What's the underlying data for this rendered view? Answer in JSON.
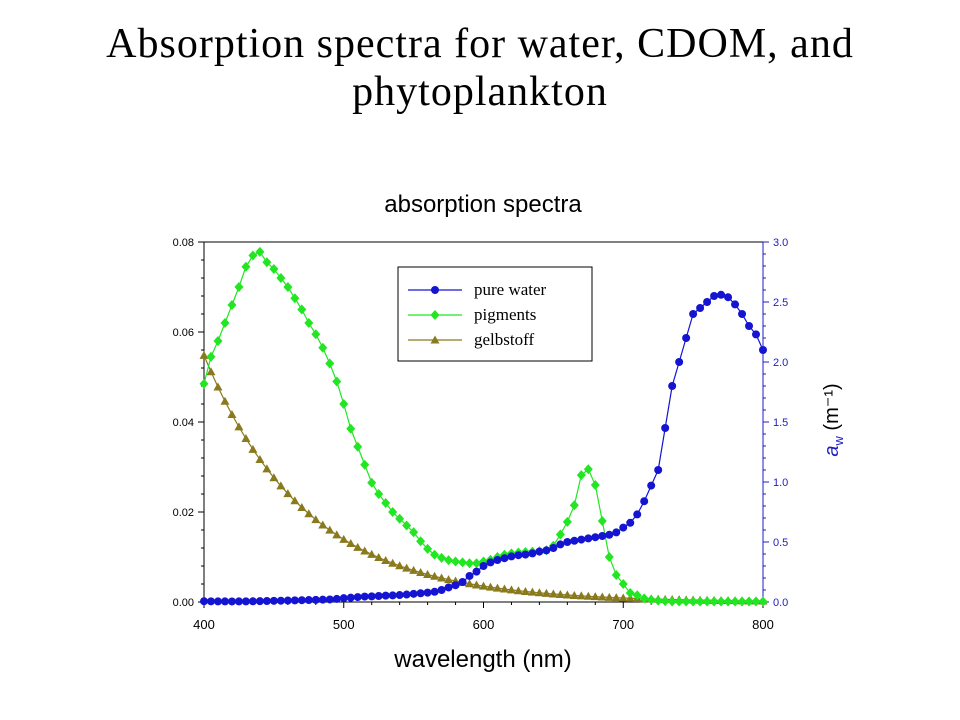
{
  "slide": {
    "title_line1": "Absorption spectra for water, CDOM, and",
    "title_line2": "phytoplankton"
  },
  "chart_data": {
    "type": "line",
    "title": "absorption spectra",
    "xlabel": "wavelength  (nm)",
    "y_label_right": "(m⁻¹)",
    "y_label_right_symbol": "a",
    "y_label_right_subscript": "w",
    "xlim": [
      400,
      800
    ],
    "x_ticks": [
      400,
      500,
      600,
      700,
      800
    ],
    "ylim_left": [
      0,
      0.08
    ],
    "y_ticks_left": [
      "0.00",
      "0.02",
      "0.04",
      "0.06",
      "0.08"
    ],
    "ylim_right": [
      0,
      3.0
    ],
    "y_ticks_right": [
      "0.0",
      "0.5",
      "1.0",
      "1.5",
      "2.0",
      "2.5",
      "3.0"
    ],
    "grid": false,
    "legend_position": "top-center",
    "colors": {
      "axis_left": "#000000",
      "axis_right": "#1c1cc8"
    },
    "series": [
      {
        "name": "pure water",
        "axis": "right",
        "marker": "circle",
        "color": "#1414d2",
        "x": [
          400,
          405,
          410,
          415,
          420,
          425,
          430,
          435,
          440,
          445,
          450,
          455,
          460,
          465,
          470,
          475,
          480,
          485,
          490,
          495,
          500,
          505,
          510,
          515,
          520,
          525,
          530,
          535,
          540,
          545,
          550,
          555,
          560,
          565,
          570,
          575,
          580,
          585,
          590,
          595,
          600,
          605,
          610,
          615,
          620,
          625,
          630,
          635,
          640,
          645,
          650,
          655,
          660,
          665,
          670,
          675,
          680,
          685,
          690,
          695,
          700,
          705,
          710,
          715,
          720,
          725,
          730,
          735,
          740,
          745,
          750,
          755,
          760,
          765,
          770,
          775,
          780,
          785,
          790,
          795,
          800
        ],
        "values": [
          0.0066,
          0.0057,
          0.005,
          0.0047,
          0.0046,
          0.0047,
          0.0051,
          0.0058,
          0.0071,
          0.0083,
          0.0098,
          0.0109,
          0.0121,
          0.0136,
          0.015,
          0.0162,
          0.0176,
          0.0195,
          0.0211,
          0.0256,
          0.032,
          0.036,
          0.041,
          0.045,
          0.047,
          0.05,
          0.053,
          0.055,
          0.058,
          0.062,
          0.068,
          0.073,
          0.078,
          0.085,
          0.1,
          0.121,
          0.14,
          0.167,
          0.217,
          0.253,
          0.3,
          0.33,
          0.35,
          0.365,
          0.38,
          0.39,
          0.395,
          0.405,
          0.42,
          0.43,
          0.45,
          0.48,
          0.5,
          0.51,
          0.52,
          0.53,
          0.54,
          0.55,
          0.56,
          0.58,
          0.62,
          0.66,
          0.73,
          0.84,
          0.97,
          1.1,
          1.45,
          1.8,
          2.0,
          2.2,
          2.4,
          2.45,
          2.5,
          2.55,
          2.56,
          2.54,
          2.48,
          2.4,
          2.3,
          2.23,
          2.1
        ],
        "note_units": "m^-1"
      },
      {
        "name": "pigments",
        "axis": "left",
        "marker": "diamond",
        "color": "#22e622",
        "x": [
          400,
          405,
          410,
          415,
          420,
          425,
          430,
          435,
          440,
          445,
          450,
          455,
          460,
          465,
          470,
          475,
          480,
          485,
          490,
          495,
          500,
          505,
          510,
          515,
          520,
          525,
          530,
          535,
          540,
          545,
          550,
          555,
          560,
          565,
          570,
          575,
          580,
          585,
          590,
          595,
          600,
          605,
          610,
          615,
          620,
          625,
          630,
          635,
          640,
          645,
          650,
          655,
          660,
          665,
          670,
          675,
          680,
          685,
          690,
          695,
          700,
          705,
          710,
          715,
          720,
          725,
          730,
          735,
          740,
          745,
          750,
          755,
          760,
          765,
          770,
          775,
          780,
          785,
          790,
          795,
          800
        ],
        "values": [
          0.0485,
          0.0545,
          0.058,
          0.062,
          0.066,
          0.07,
          0.0745,
          0.077,
          0.0778,
          0.0755,
          0.074,
          0.072,
          0.07,
          0.0675,
          0.065,
          0.062,
          0.0595,
          0.0565,
          0.053,
          0.049,
          0.044,
          0.0385,
          0.0345,
          0.0305,
          0.0265,
          0.024,
          0.022,
          0.02,
          0.0185,
          0.017,
          0.0155,
          0.0135,
          0.0118,
          0.0105,
          0.0098,
          0.0093,
          0.009,
          0.0088,
          0.0086,
          0.0086,
          0.009,
          0.0094,
          0.01,
          0.0105,
          0.0108,
          0.011,
          0.0111,
          0.0112,
          0.0113,
          0.0115,
          0.0125,
          0.015,
          0.0178,
          0.0215,
          0.0282,
          0.0295,
          0.026,
          0.018,
          0.01,
          0.006,
          0.004,
          0.002,
          0.0015,
          0.0008,
          0.0005,
          0.0003,
          0.0002,
          0.0001,
          0.0001,
          0.0001,
          0.0001,
          0.0001,
          0.0001,
          0.0001,
          0.0001,
          0.0001,
          0.0001,
          0.0001,
          0.0001,
          0.0001,
          0.0001
        ]
      },
      {
        "name": "gelbstoff",
        "axis": "left",
        "marker": "triangle",
        "color": "#8a7a1e",
        "x_start": 400,
        "x_end": 800,
        "x_step": 5,
        "model": "0.0548 * exp(-0.0137 * (x - 400))"
      }
    ]
  }
}
